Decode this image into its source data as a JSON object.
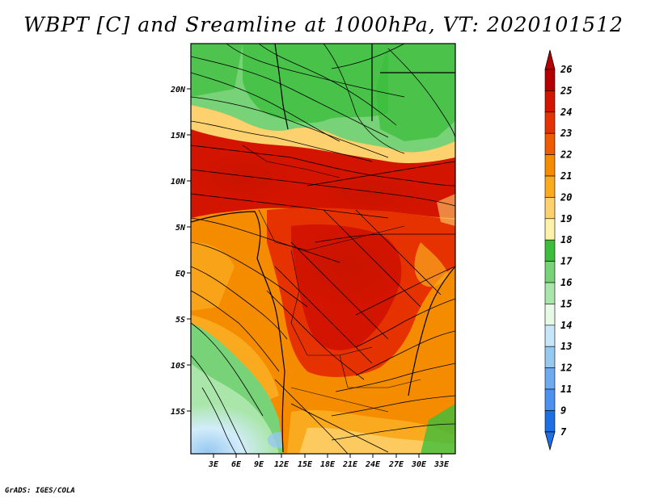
{
  "title": "WBPT [C] and Sreamline at 1000hPa, VT: 2020101512",
  "footer": "GrADS: IGES/COLA",
  "map": {
    "lat_ticks": [
      "20N",
      "15N",
      "10N",
      "5N",
      "EQ",
      "5S",
      "10S",
      "15S"
    ],
    "lon_ticks": [
      "3E",
      "6E",
      "9E",
      "12E",
      "15E",
      "18E",
      "21E",
      "24E",
      "27E",
      "30E",
      "33E"
    ]
  },
  "colorbar": {
    "levels": [
      "26",
      "25",
      "24",
      "23",
      "22",
      "21",
      "20",
      "19",
      "18",
      "17",
      "16",
      "15",
      "14",
      "13",
      "12",
      "11",
      "9",
      "7"
    ],
    "colors": [
      "#b40000",
      "#d21400",
      "#e63200",
      "#f05a00",
      "#f58c00",
      "#faaa1e",
      "#fdd26e",
      "#fff0aa",
      "#3cbe3c",
      "#78d278",
      "#aae6aa",
      "#e6fae6",
      "#c8e6fa",
      "#96c8f0",
      "#6eaaf0",
      "#4b91f0",
      "#1e6ee6"
    ]
  }
}
